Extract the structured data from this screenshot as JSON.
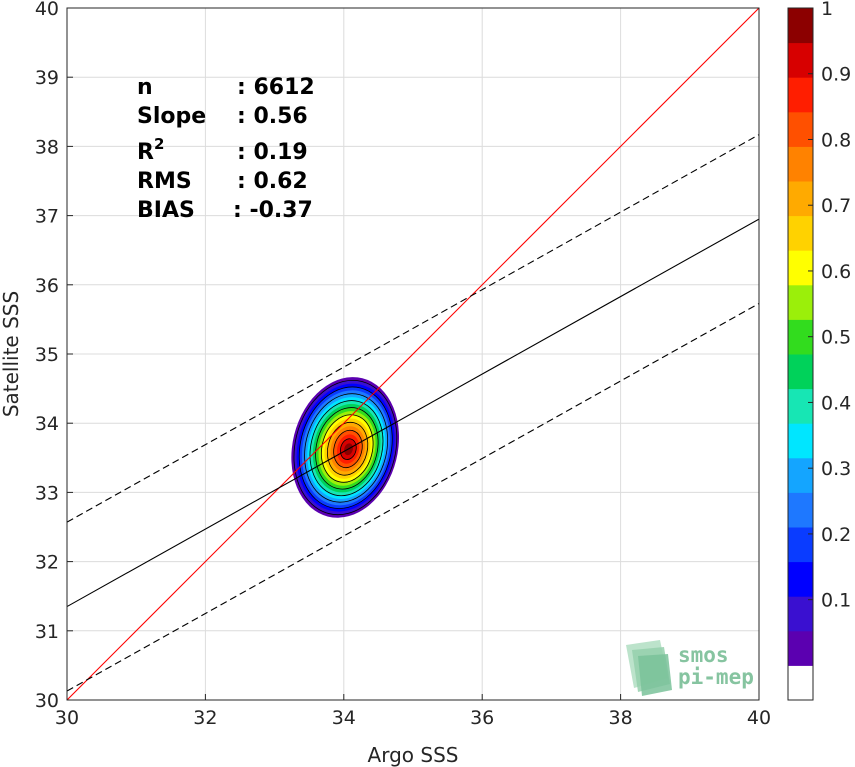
{
  "chart_data": {
    "type": "scatter",
    "subtype": "density-contour",
    "xlabel": "Argo SSS",
    "ylabel": "Satellite SSS",
    "xlim": [
      30,
      40
    ],
    "ylim": [
      30,
      40
    ],
    "xticks": [
      "30",
      "32",
      "34",
      "36",
      "38",
      "40"
    ],
    "yticks": [
      "30",
      "31",
      "32",
      "33",
      "34",
      "35",
      "36",
      "37",
      "38",
      "39",
      "40"
    ],
    "grid": true,
    "stats": [
      {
        "name": "n",
        "value": ": 6612"
      },
      {
        "name": "Slope",
        "value": ": 0.56"
      },
      {
        "name": "R",
        "superscript": "2",
        "value": ": 0.19"
      },
      {
        "name": "RMS",
        "value": ": 0.62"
      },
      {
        "name": "BIAS",
        "value": ": -0.37"
      }
    ],
    "lines": [
      {
        "name": "one-to-one",
        "color": "#ff0000",
        "style": "solid",
        "points": [
          [
            30,
            30
          ],
          [
            40,
            40
          ]
        ]
      },
      {
        "name": "regression",
        "color": "#000000",
        "style": "solid",
        "points": [
          [
            30,
            31.35
          ],
          [
            40,
            36.95
          ]
        ]
      },
      {
        "name": "upper-bound",
        "color": "#000000",
        "style": "dashed",
        "points": [
          [
            30,
            32.57
          ],
          [
            40,
            38.17
          ]
        ]
      },
      {
        "name": "lower-bound",
        "color": "#000000",
        "style": "dashed",
        "points": [
          [
            30,
            30.13
          ],
          [
            40,
            35.73
          ]
        ]
      }
    ],
    "density": {
      "center_x": 34.02,
      "center_y": 33.65,
      "outer_extent": {
        "x": [
          33.1,
          34.65
        ],
        "y": [
          32.57,
          34.63
        ]
      },
      "levels": [
        0.05,
        0.1,
        0.2,
        0.3,
        0.4,
        0.5,
        0.6,
        0.7,
        0.8,
        0.9
      ]
    },
    "colorbar": {
      "ticks": [
        "0.1",
        "0.2",
        "0.3",
        "0.4",
        "0.5",
        "0.6",
        "0.7",
        "0.8",
        "0.9",
        "1"
      ],
      "range": [
        0,
        1
      ],
      "colors": [
        "#ffffff",
        "#5b00b0",
        "#3a10d0",
        "#0000ff",
        "#0a3cff",
        "#1e78ff",
        "#14a5ff",
        "#00e6ff",
        "#17e6b4",
        "#00d25a",
        "#32dc1e",
        "#9bef0a",
        "#ffff00",
        "#ffd200",
        "#ffaa00",
        "#ff8200",
        "#ff5000",
        "#ff1e00",
        "#d70000",
        "#8c0000"
      ]
    }
  },
  "logo": {
    "line1": "smos",
    "line2": "pi-mep"
  }
}
